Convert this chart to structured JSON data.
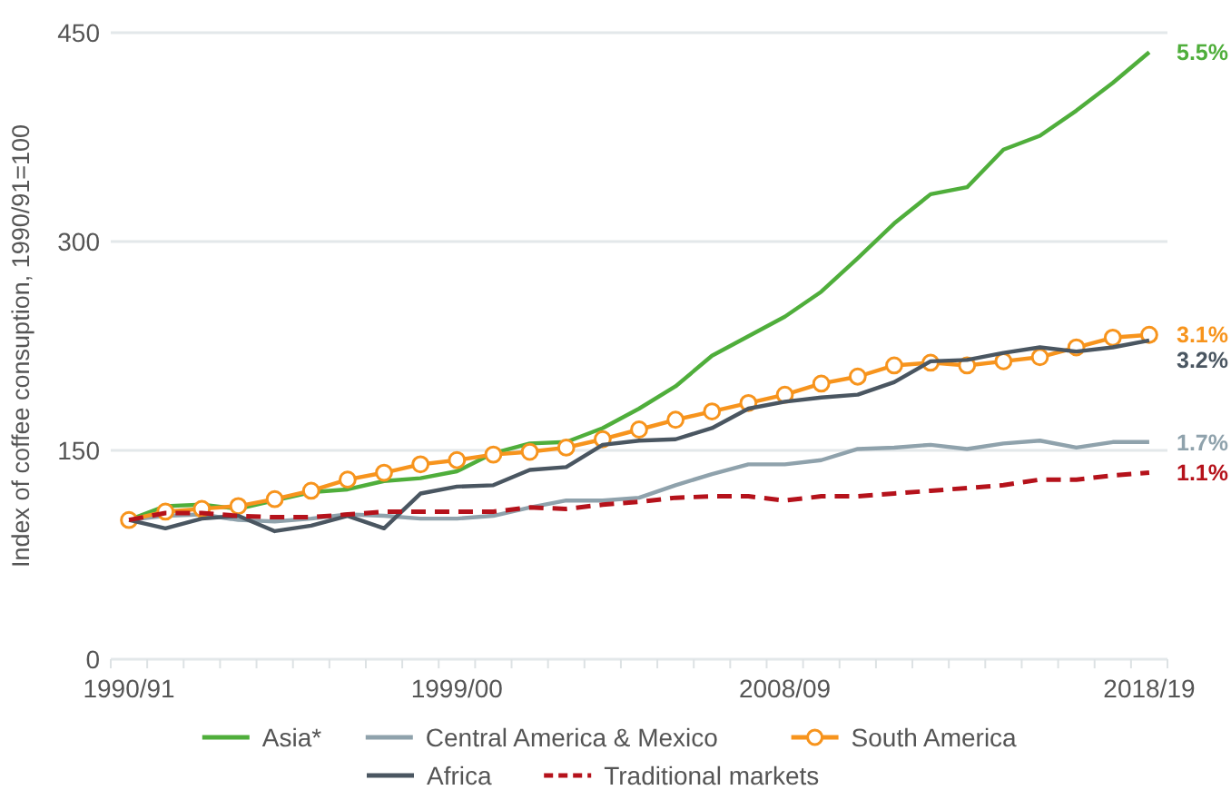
{
  "chart_data": {
    "type": "line",
    "ylabel": "Index of coffee consuption, 1990/91=100",
    "categories": [
      "1990/91",
      null,
      null,
      null,
      null,
      null,
      null,
      null,
      null,
      "1999/00",
      null,
      null,
      null,
      null,
      null,
      null,
      null,
      null,
      "2008/09",
      null,
      null,
      null,
      null,
      null,
      null,
      null,
      null,
      null,
      "2018/19"
    ],
    "ylim": [
      0,
      450
    ],
    "yticks": [
      0,
      150,
      300,
      450
    ],
    "grid": "y",
    "legend": "bottom",
    "annotations": [
      {
        "text": "5.5%",
        "x": "2018/19",
        "y": 436
      },
      {
        "text": "3.1%",
        "x": "2018/19",
        "y": 233
      },
      {
        "text": "3.2%",
        "x": "2018/19",
        "y": 229
      },
      {
        "text": "1.7%",
        "x": "2018/19",
        "y": 156
      },
      {
        "text": "1.1%",
        "x": "2018/19",
        "y": 134
      }
    ],
    "series": [
      {
        "name": "Asia*",
        "color": "#4fae3b",
        "values": [
          100,
          110,
          111,
          108,
          114,
          120,
          122,
          128,
          130,
          135,
          148,
          155,
          156,
          166,
          180,
          196,
          218,
          232,
          246,
          264,
          288,
          313,
          334,
          339,
          366,
          376,
          394,
          414,
          436
        ]
      },
      {
        "name": "Central America & Mexico",
        "color": "#8fa2ac",
        "values": [
          100,
          103,
          104,
          100,
          99,
          101,
          104,
          103,
          101,
          101,
          103,
          109,
          114,
          114,
          116,
          125,
          133,
          140,
          140,
          143,
          151,
          152,
          154,
          151,
          155,
          157,
          152,
          156,
          156
        ]
      },
      {
        "name": "South America",
        "color": "#f7941d",
        "marker": "circle",
        "values": [
          100,
          106,
          108,
          110,
          115,
          121,
          129,
          134,
          140,
          143,
          147,
          149,
          152,
          158,
          165,
          172,
          178,
          184,
          190,
          198,
          203,
          211,
          213,
          211,
          214,
          217,
          224,
          231,
          233
        ]
      },
      {
        "name": "Africa",
        "color": "#4a5661",
        "values": [
          100,
          94,
          101,
          103,
          92,
          96,
          103,
          94,
          119,
          124,
          125,
          136,
          138,
          154,
          157,
          158,
          166,
          180,
          185,
          188,
          190,
          199,
          214,
          215,
          220,
          224,
          221,
          224,
          229
        ]
      },
      {
        "name": "Traditional markets",
        "color": "#b5121b",
        "line_style": "dashed",
        "values": [
          100,
          105,
          105,
          103,
          102,
          102,
          104,
          106,
          106,
          106,
          106,
          109,
          108,
          111,
          113,
          116,
          117,
          117,
          114,
          117,
          117,
          119,
          121,
          123,
          125,
          129,
          129,
          132,
          134
        ]
      }
    ]
  }
}
